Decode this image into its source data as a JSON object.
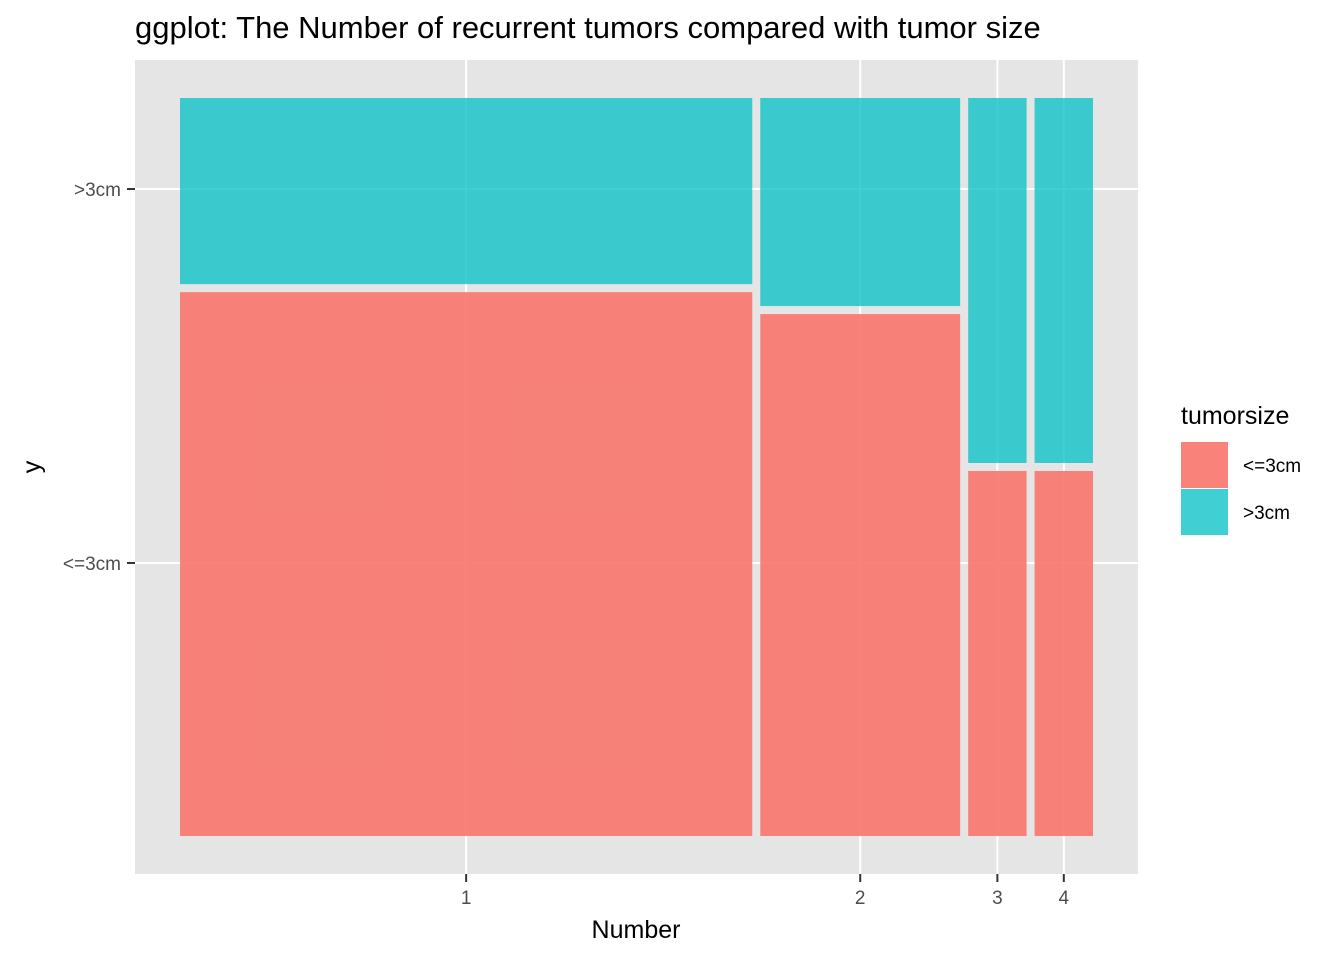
{
  "chart_data": {
    "type": "mosaic",
    "title": "ggplot: The Number of recurrent tumors compared with tumor size",
    "xlabel": "Number",
    "ylabel": "y",
    "categories": [
      "1",
      "2",
      "3",
      "4"
    ],
    "category_widths": [
      0.627,
      0.219,
      0.064,
      0.064
    ],
    "y_levels": [
      "<=3cm",
      ">3cm"
    ],
    "fill_variable": "tumorsize",
    "series": [
      {
        "name": "<=3cm",
        "color": "#F8766D",
        "proportions": [
          0.745,
          0.715,
          0.5,
          0.5
        ]
      },
      {
        "name": ">3cm",
        "color": "#00BFC4",
        "proportions": [
          0.255,
          0.285,
          0.5,
          0.5
        ]
      }
    ],
    "legend": {
      "title": "tumorsize",
      "position": "right"
    },
    "grid": true
  }
}
